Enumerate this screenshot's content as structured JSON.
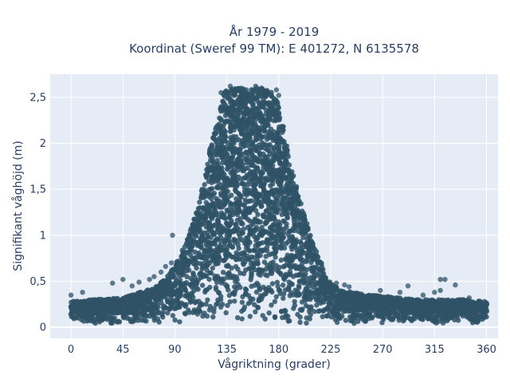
{
  "chart_data": {
    "type": "scatter",
    "title": [
      "År 1979 - 2019",
      "Koordinat (Sweref 99 TM): E 401272, N 6135578"
    ],
    "xlabel": "Vågriktning (grader)",
    "ylabel": "Signifikant våghöjd (m)",
    "xlim": [
      -18,
      370
    ],
    "ylim": [
      -0.12,
      2.75
    ],
    "xticks": [
      {
        "value": 0,
        "label": "0"
      },
      {
        "value": 45,
        "label": "45"
      },
      {
        "value": 90,
        "label": "90"
      },
      {
        "value": 135,
        "label": "135"
      },
      {
        "value": 180,
        "label": "180"
      },
      {
        "value": 225,
        "label": "225"
      },
      {
        "value": 270,
        "label": "270"
      },
      {
        "value": 315,
        "label": "315"
      },
      {
        "value": 360,
        "label": "360"
      }
    ],
    "yticks": [
      {
        "value": 0,
        "label": "0"
      },
      {
        "value": 0.5,
        "label": "0,5"
      },
      {
        "value": 1,
        "label": "1"
      },
      {
        "value": 1.5,
        "label": "1,5"
      },
      {
        "value": 2,
        "label": "2"
      },
      {
        "value": 2.5,
        "label": "2,5"
      }
    ],
    "grid": true,
    "marker_color": "#2f5266",
    "plot_bgcolor": "#e5ecf6",
    "density_profile": [
      [
        0,
        0.28
      ],
      [
        20,
        0.3
      ],
      [
        45,
        0.32
      ],
      [
        60,
        0.38
      ],
      [
        75,
        0.45
      ],
      [
        85,
        0.58
      ],
      [
        90,
        0.68
      ],
      [
        95,
        0.8
      ],
      [
        100,
        0.95
      ],
      [
        105,
        1.1
      ],
      [
        110,
        1.3
      ],
      [
        115,
        1.6
      ],
      [
        120,
        1.9
      ],
      [
        125,
        2.2
      ],
      [
        130,
        2.45
      ],
      [
        135,
        2.6
      ],
      [
        150,
        2.6
      ],
      [
        165,
        2.6
      ],
      [
        175,
        2.55
      ],
      [
        180,
        2.4
      ],
      [
        185,
        2.1
      ],
      [
        190,
        1.8
      ],
      [
        195,
        1.55
      ],
      [
        200,
        1.3
      ],
      [
        205,
        1.1
      ],
      [
        210,
        0.9
      ],
      [
        215,
        0.75
      ],
      [
        220,
        0.6
      ],
      [
        225,
        0.48
      ],
      [
        235,
        0.4
      ],
      [
        260,
        0.35
      ],
      [
        300,
        0.3
      ],
      [
        340,
        0.3
      ],
      [
        360,
        0.28
      ]
    ],
    "points": [
      [
        0,
        0.35
      ],
      [
        10,
        0.38
      ],
      [
        36,
        0.48
      ],
      [
        45,
        0.52
      ],
      [
        53,
        0.45
      ],
      [
        59,
        0.49
      ],
      [
        68,
        0.52
      ],
      [
        72,
        0.55
      ],
      [
        78,
        0.6
      ],
      [
        82,
        0.66
      ],
      [
        87,
        0.7
      ],
      [
        88,
        1.0
      ],
      [
        93,
        0.72
      ],
      [
        98,
        0.68
      ],
      [
        130,
        2.55
      ],
      [
        138,
        2.62
      ],
      [
        143,
        2.58
      ],
      [
        148,
        2.55
      ],
      [
        152,
        2.58
      ],
      [
        160,
        2.62
      ],
      [
        165,
        2.6
      ],
      [
        170,
        2.56
      ],
      [
        178,
        2.58
      ],
      [
        180,
        2.52
      ],
      [
        230,
        0.48
      ],
      [
        237,
        0.46
      ],
      [
        241,
        0.44
      ],
      [
        268,
        0.4
      ],
      [
        285,
        0.38
      ],
      [
        292,
        0.45
      ],
      [
        305,
        0.35
      ],
      [
        315,
        0.38
      ],
      [
        320,
        0.52
      ],
      [
        324,
        0.52
      ],
      [
        333,
        0.46
      ],
      [
        320,
        0.4
      ],
      [
        340,
        0.3
      ],
      [
        350,
        0.26
      ],
      [
        355,
        0.25
      ],
      [
        358,
        0.23
      ],
      [
        345,
        0.32
      ]
    ]
  }
}
